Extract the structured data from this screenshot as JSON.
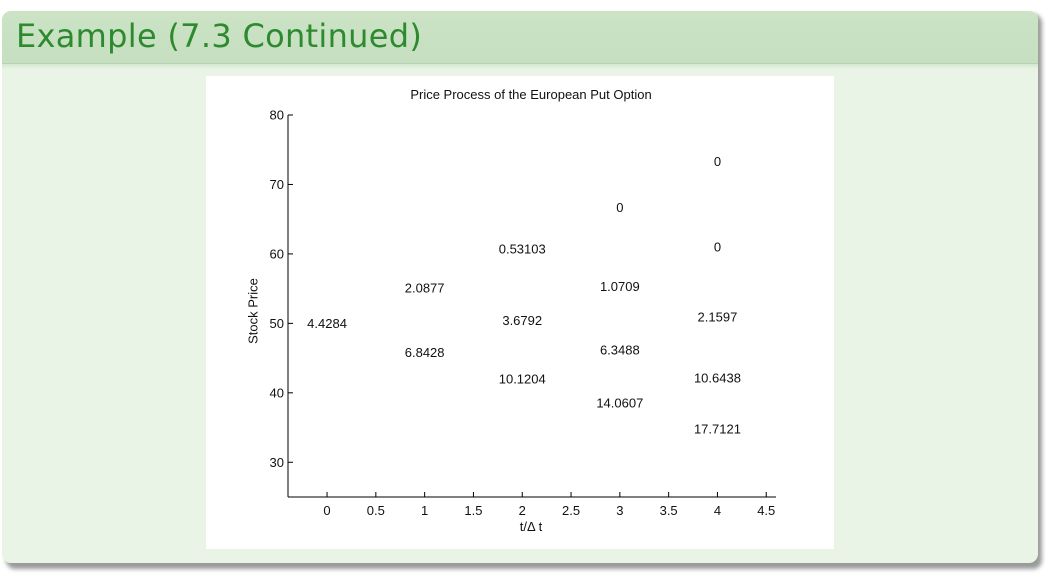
{
  "slide": {
    "title": "Example (7.3 Continued)"
  },
  "colors": {
    "title_bar": "#c6dfc0",
    "title_text": "#2e8a2e",
    "slide_bg": "#e9f3e6",
    "figure_bg": "#ffffff"
  },
  "chart_data": {
    "type": "scatter",
    "title": "Price Process of the European Put Option",
    "xlabel": "t/Δ t",
    "ylabel": "Stock Price",
    "xlim": [
      -0.4,
      4.6
    ],
    "ylim": [
      25,
      80
    ],
    "xticks": [
      0,
      0.5,
      1,
      1.5,
      2,
      2.5,
      3,
      3.5,
      4,
      4.5
    ],
    "xtick_labels": [
      "0",
      "0.5",
      "1",
      "1.5",
      "2",
      "2.5",
      "3",
      "3.5",
      "4",
      "4.5"
    ],
    "yticks": [
      30,
      40,
      50,
      60,
      70,
      80
    ],
    "ytick_labels": [
      "30",
      "40",
      "50",
      "60",
      "70",
      "80"
    ],
    "grid": false,
    "points": [
      {
        "x": 0,
        "y": 50.0,
        "label": "4.4284"
      },
      {
        "x": 1,
        "y": 55.1,
        "label": "2.0877"
      },
      {
        "x": 1,
        "y": 45.8,
        "label": "6.8428"
      },
      {
        "x": 2,
        "y": 60.7,
        "label": "0.53103"
      },
      {
        "x": 2,
        "y": 50.4,
        "label": "3.6792"
      },
      {
        "x": 2,
        "y": 42.0,
        "label": "10.1204"
      },
      {
        "x": 3,
        "y": 66.7,
        "label": "0"
      },
      {
        "x": 3,
        "y": 55.3,
        "label": "1.0709"
      },
      {
        "x": 3,
        "y": 46.2,
        "label": "6.3488"
      },
      {
        "x": 3,
        "y": 38.5,
        "label": "14.0607"
      },
      {
        "x": 4,
        "y": 73.3,
        "label": "0"
      },
      {
        "x": 4,
        "y": 61.0,
        "label": "0"
      },
      {
        "x": 4,
        "y": 50.9,
        "label": "2.1597"
      },
      {
        "x": 4,
        "y": 42.1,
        "label": "10.6438"
      },
      {
        "x": 4,
        "y": 34.8,
        "label": "17.7121"
      }
    ]
  }
}
